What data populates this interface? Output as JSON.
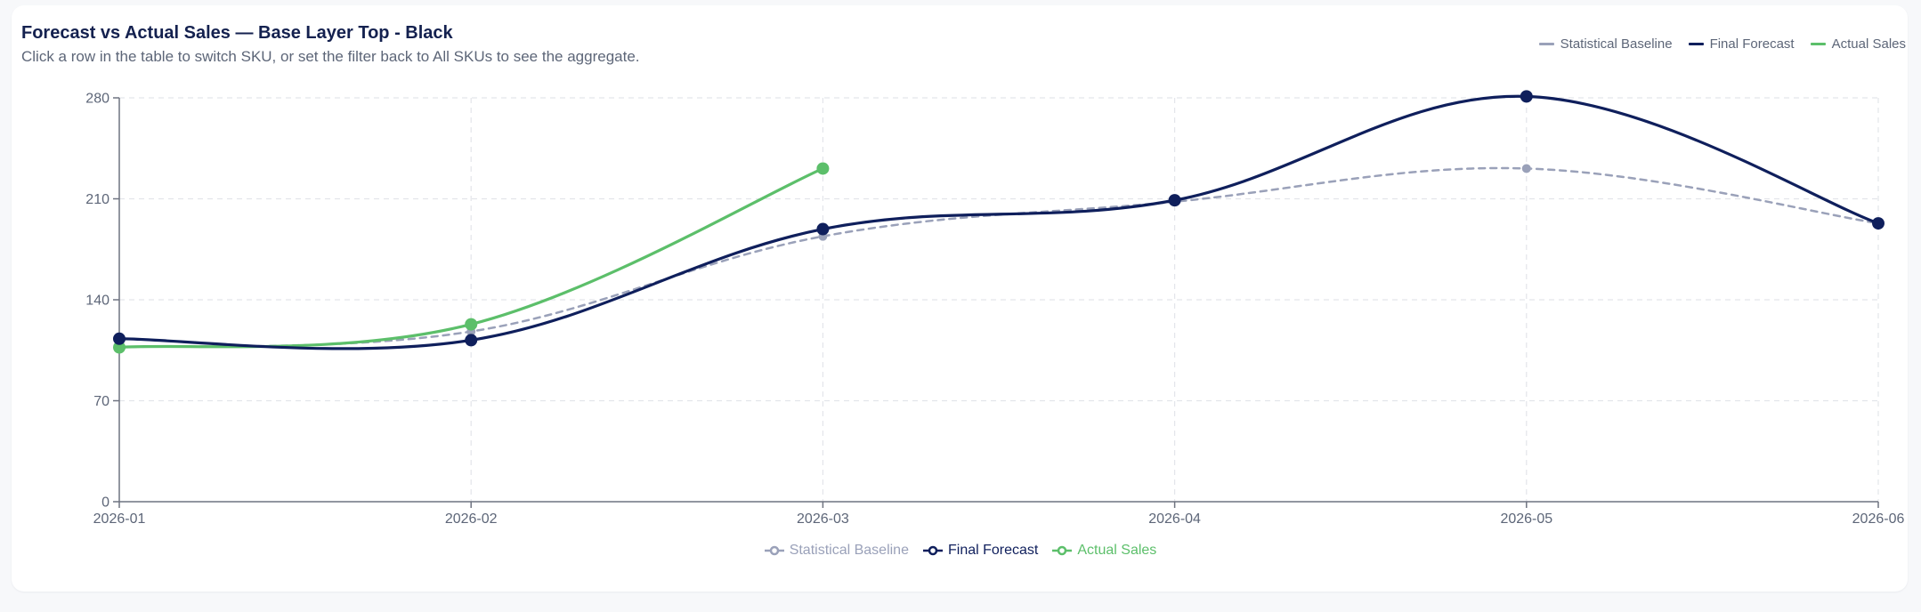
{
  "header": {
    "title": "Forecast vs Actual Sales — Base Layer Top - Black",
    "subtitle": "Click a row in the table to switch SKU, or set the filter back to All SKUs to see the aggregate."
  },
  "legend_top": [
    {
      "label": "Statistical Baseline",
      "color": "#9aa1b9"
    },
    {
      "label": "Final Forecast",
      "color": "#0f1f5c"
    },
    {
      "label": "Actual Sales",
      "color": "#5cbf6a"
    }
  ],
  "legend_bottom": [
    {
      "label": "Statistical Baseline",
      "color": "#9aa1b9"
    },
    {
      "label": "Final Forecast",
      "color": "#0f1f5c"
    },
    {
      "label": "Actual Sales",
      "color": "#5cbf6a"
    }
  ],
  "chart_data": {
    "type": "line",
    "title": "Forecast vs Actual Sales — Base Layer Top - Black",
    "subtitle": "Click a row in the table to switch SKU, or set the filter back to All SKUs to see the aggregate.",
    "xlabel": "",
    "ylabel": "",
    "categories": [
      "2026-01",
      "2026-02",
      "2026-03",
      "2026-04",
      "2026-05",
      "2026-06"
    ],
    "yticks": [
      0,
      70,
      140,
      210,
      280
    ],
    "ylim": [
      0,
      280
    ],
    "grid": true,
    "legend_position": "top-right and bottom-center",
    "series": [
      {
        "name": "Statistical Baseline",
        "color": "#9aa1b9",
        "style": "dashed",
        "values": [
          107,
          118,
          184,
          208,
          231,
          193
        ]
      },
      {
        "name": "Final Forecast",
        "color": "#0f1f5c",
        "style": "solid",
        "values": [
          113,
          112,
          189,
          209,
          281,
          193
        ]
      },
      {
        "name": "Actual Sales",
        "color": "#5cbf6a",
        "style": "solid",
        "values": [
          107,
          123,
          231,
          null,
          null,
          null
        ]
      }
    ]
  }
}
